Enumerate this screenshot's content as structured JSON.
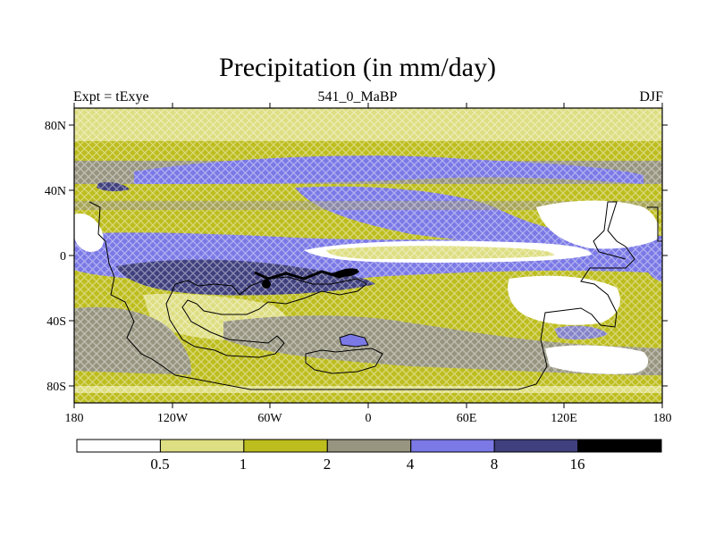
{
  "title": "Precipitation (in mm/day)",
  "subtitle_left": "Expt = tExye",
  "subtitle_center": "541_0_MaBP",
  "subtitle_right": "DJF",
  "x_ticks": [
    "180",
    "120W",
    "60W",
    "0",
    "60E",
    "120E",
    "180"
  ],
  "y_ticks": [
    "80N",
    "40N",
    "0",
    "40S",
    "80S"
  ],
  "colorbar": {
    "labels": [
      "0.5",
      "1",
      "2",
      "4",
      "8",
      "16"
    ],
    "colors": [
      "#ffffff",
      "#dede82",
      "#bdbd1e",
      "#979580",
      "#7b79e6",
      "#40407e",
      "#000000"
    ]
  },
  "colors": {
    "ocean_base": "#bdbd1e",
    "high_lat": "#dede82",
    "land_dry": "#ffffff",
    "mid_grey": "#979580",
    "wet": "#7b79e6",
    "very_wet": "#40407e"
  }
}
